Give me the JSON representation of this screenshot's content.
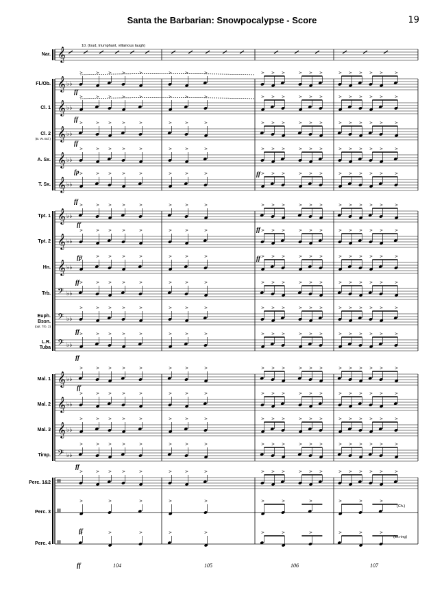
{
  "header": {
    "title": "Santa the Barbarian: Snowpocalypse - Score",
    "page_number": "19"
  },
  "instruments": [
    {
      "label": "Nar.",
      "sub": ""
    },
    {
      "label": "Fl./Ob.",
      "sub": ""
    },
    {
      "label": "Cl. 1",
      "sub": ""
    },
    {
      "label": "Cl. 2",
      "sub": "(B. W. Bcl.)"
    },
    {
      "label": "A. Sx.",
      "sub": ""
    },
    {
      "label": "T. Sx.",
      "sub": ""
    },
    {
      "label": "Tpt. 1",
      "sub": ""
    },
    {
      "label": "Tpt. 2",
      "sub": ""
    },
    {
      "label": "Hn.",
      "sub": ""
    },
    {
      "label": "Trb.",
      "sub": ""
    },
    {
      "label": "Euph.\nBssn.",
      "sub": "(opt. Trb. 2)"
    },
    {
      "label": "L.R.\nTuba",
      "sub": ""
    },
    {
      "label": "Mal. 1",
      "sub": ""
    },
    {
      "label": "Mal. 2",
      "sub": ""
    },
    {
      "label": "Mal. 3",
      "sub": ""
    },
    {
      "label": "Timp.",
      "sub": ""
    },
    {
      "label": "Perc. 1&2",
      "sub": ""
    },
    {
      "label": "Perc. 3",
      "sub": ""
    },
    {
      "label": "Perc. 4",
      "sub": ""
    }
  ],
  "annotations": {
    "narrator": "10. (loud, triumphant, villainous laugh)",
    "ch": "(Ch.)",
    "let_ring": "(let ring)"
  },
  "measures": [
    "104",
    "105",
    "106",
    "107"
  ],
  "dynamics": {
    "ff": "ff",
    "fp": "fp"
  }
}
